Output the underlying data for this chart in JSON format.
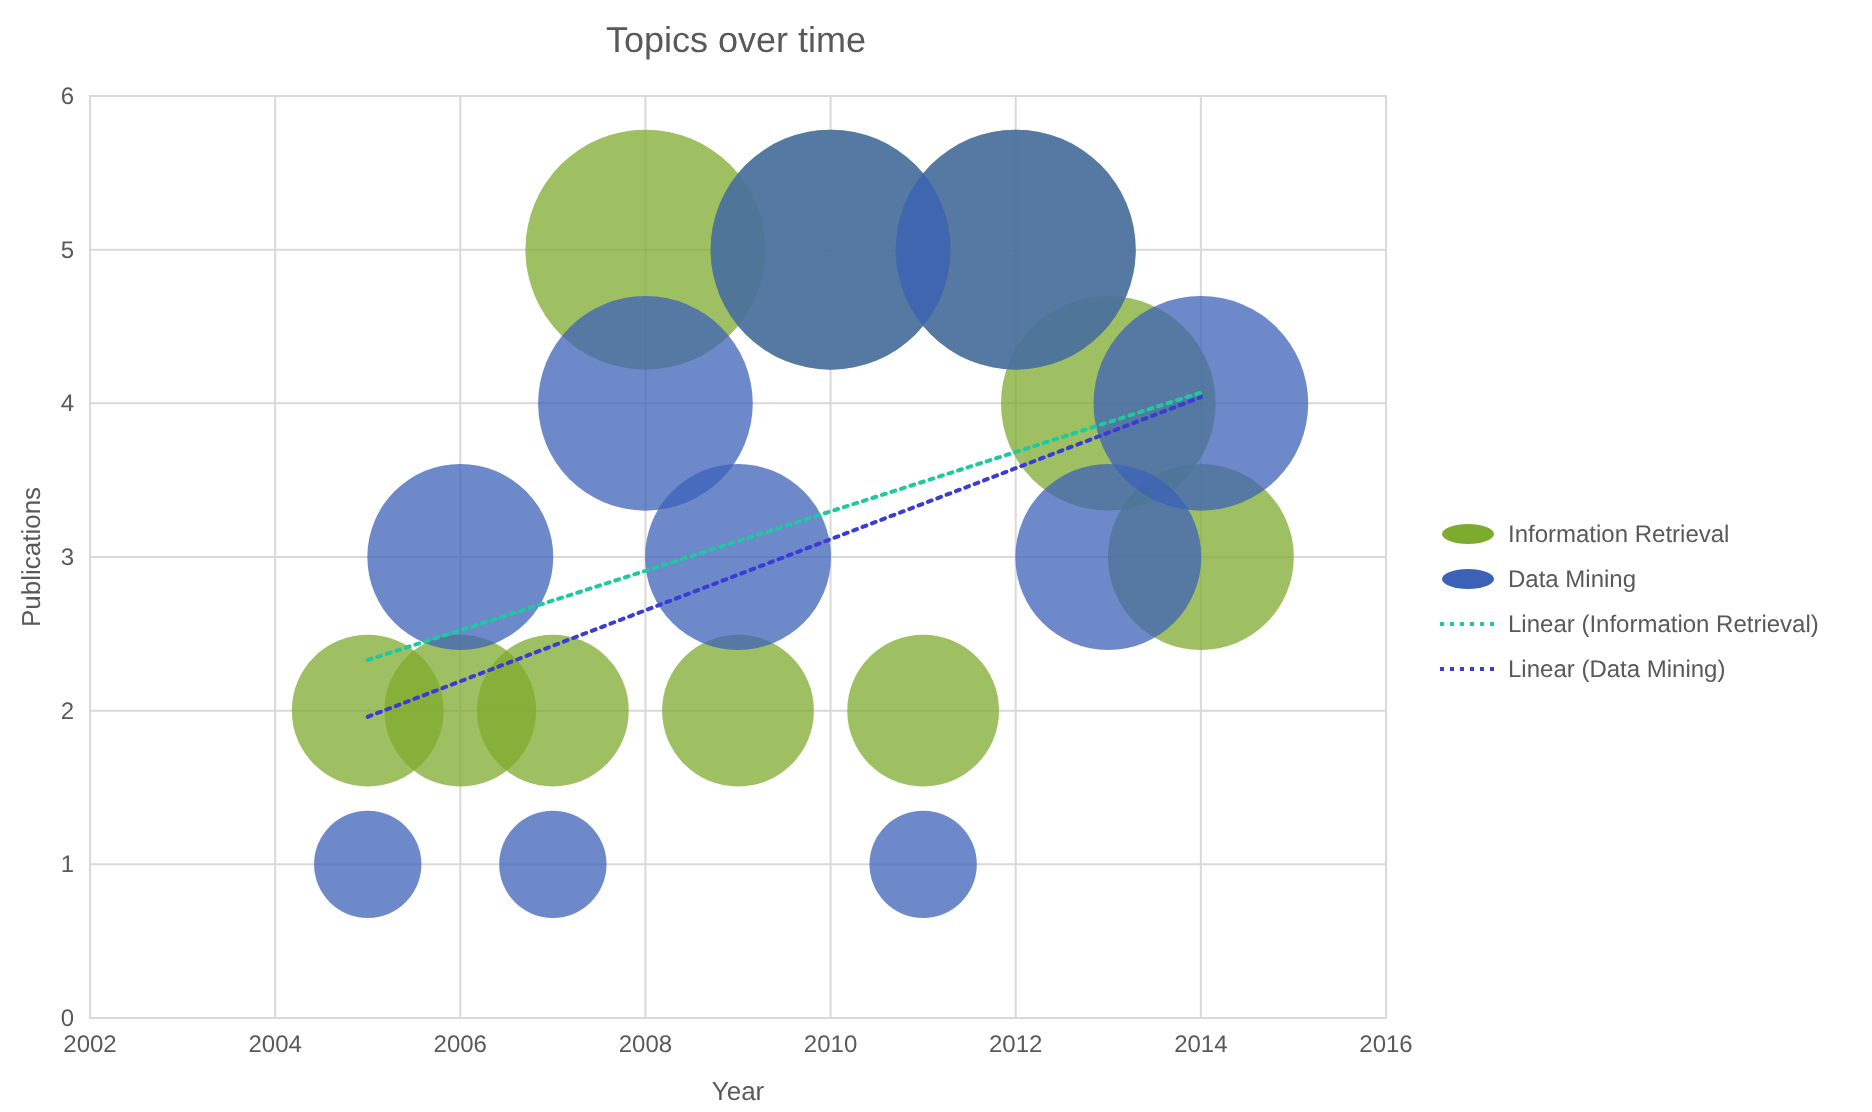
{
  "chart_data": {
    "type": "bubble",
    "title": "Topics over time",
    "xlabel": "Year",
    "ylabel": "Publications",
    "xlim": [
      2002,
      2016
    ],
    "xticks": [
      2002,
      2004,
      2006,
      2008,
      2010,
      2012,
      2014,
      2016
    ],
    "ylim": [
      0,
      6
    ],
    "yticks": [
      0,
      1,
      2,
      3,
      4,
      5,
      6
    ],
    "grid": true,
    "legend": "right",
    "series": [
      {
        "name": "Information Retrieval",
        "color": "#7dab2e",
        "x": [
          2005,
          2006,
          2007,
          2008,
          2009,
          2010,
          2011,
          2012,
          2013,
          2014
        ],
        "values": [
          2,
          2,
          2,
          5,
          2,
          5,
          2,
          5,
          4,
          3
        ],
        "sizes": [
          0.4,
          0.4,
          0.4,
          1,
          0.4,
          1,
          0.4,
          1,
          0.8,
          0.6
        ]
      },
      {
        "name": "Data Mining",
        "color": "#3c62b8",
        "x": [
          2005,
          2006,
          2007,
          2008,
          2009,
          2010,
          2011,
          2012,
          2013,
          2014
        ],
        "values": [
          1,
          3,
          1,
          4,
          3,
          5,
          1,
          5,
          3,
          4
        ],
        "sizes": [
          0.2,
          0.6,
          0.2,
          0.8,
          0.6,
          1,
          0.2,
          1,
          0.6,
          0.8
        ]
      },
      {
        "name": "Linear (Information Retrieval)",
        "type": "line",
        "line_style": "dotted",
        "color": "#1fc9a0",
        "x": [
          2005,
          2014
        ],
        "values": [
          2.33,
          4.07
        ]
      },
      {
        "name": "Linear (Data Mining)",
        "type": "line",
        "line_style": "dotted",
        "color": "#3b3bd6",
        "x": [
          2005,
          2014
        ],
        "values": [
          1.96,
          4.04
        ]
      }
    ]
  }
}
